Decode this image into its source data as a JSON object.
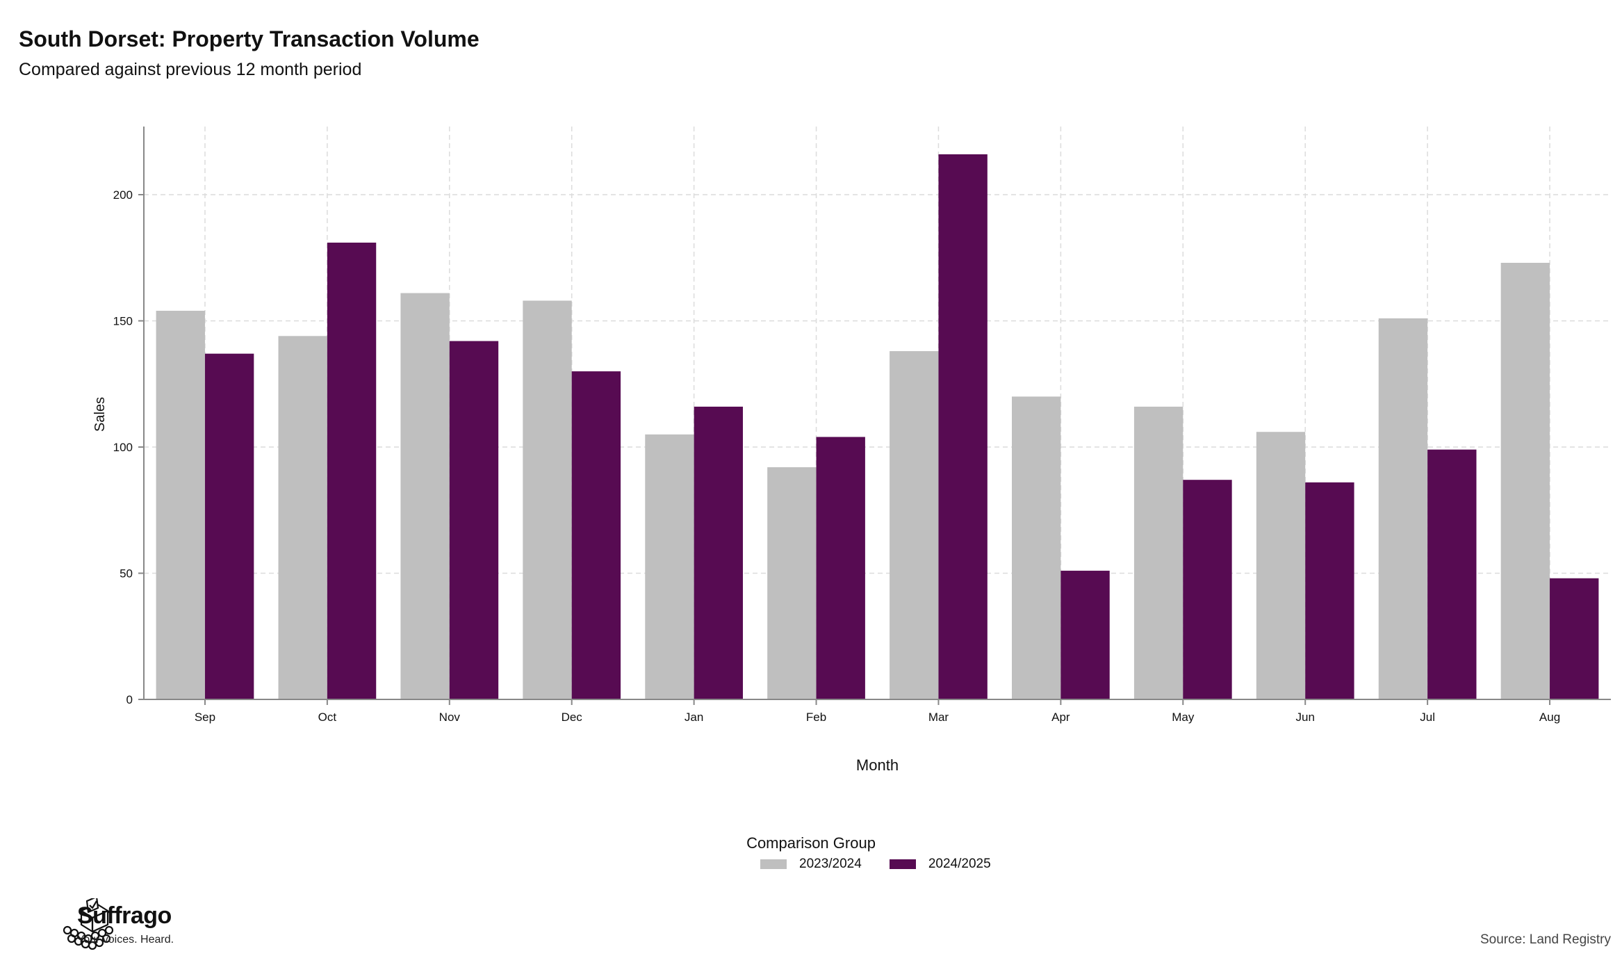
{
  "header": {
    "title": "South Dorset: Property Transaction Volume",
    "subtitle": "Compared against previous 12 month period"
  },
  "chart_data": {
    "type": "bar",
    "categories": [
      "Sep",
      "Oct",
      "Nov",
      "Dec",
      "Jan",
      "Feb",
      "Mar",
      "Apr",
      "May",
      "Jun",
      "Jul",
      "Aug"
    ],
    "series": [
      {
        "name": "2023/2024",
        "color": "#bfbfbf",
        "values": [
          154,
          144,
          161,
          158,
          105,
          92,
          138,
          120,
          116,
          106,
          151,
          173
        ]
      },
      {
        "name": "2024/2025",
        "color": "#570b52",
        "values": [
          137,
          181,
          142,
          130,
          116,
          104,
          216,
          51,
          87,
          86,
          99,
          48
        ]
      }
    ],
    "xlabel": "Month",
    "ylabel": "Sales",
    "ylim": [
      0,
      200
    ],
    "yticks": [
      0,
      50,
      100,
      150,
      200
    ],
    "grid": true,
    "legend": {
      "title": "Comparison Group",
      "position": "bottom"
    }
  },
  "footer": {
    "brand_name": "Suffrago",
    "brand_tagline": "Your voices. Heard.",
    "source": "Source: Land Registry"
  },
  "icons": {
    "logo": "ballot-box-icon"
  }
}
